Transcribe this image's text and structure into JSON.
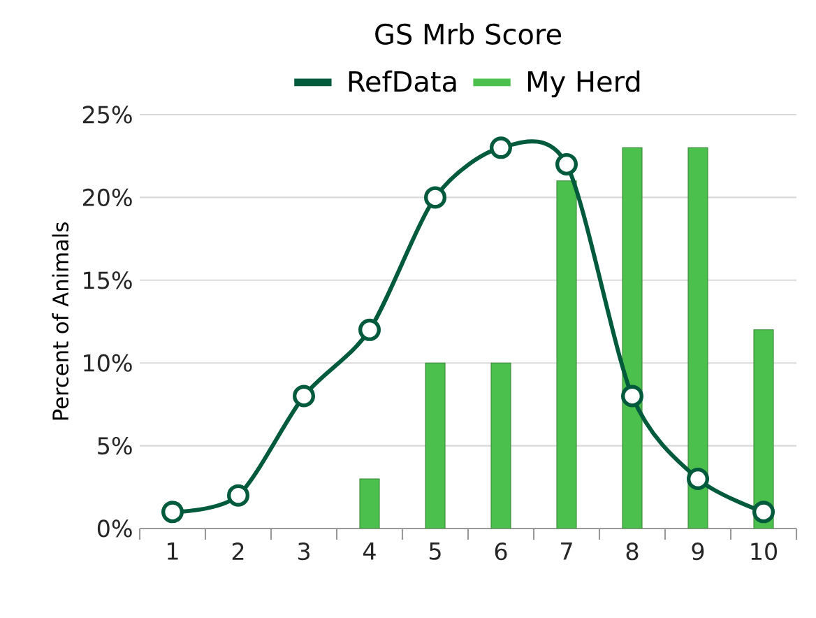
{
  "chart_data": {
    "type": "bar",
    "title": "GS Mrb Score",
    "ylabel": "Percent of Animals",
    "categories": [
      "1",
      "2",
      "3",
      "4",
      "5",
      "6",
      "7",
      "8",
      "9",
      "10"
    ],
    "series": [
      {
        "name": "RefData",
        "type": "line",
        "color": "#005a3c",
        "values": [
          1,
          2,
          8,
          12,
          20,
          23,
          22,
          8,
          3,
          1
        ]
      },
      {
        "name": "My Herd",
        "color": "#4cc04c",
        "values": [
          null,
          null,
          null,
          3,
          10,
          10,
          21,
          23,
          23,
          12
        ]
      }
    ],
    "ylim": [
      0,
      25
    ],
    "yticks": [
      {
        "value": 0,
        "label": "0%"
      },
      {
        "value": 5,
        "label": "5%"
      },
      {
        "value": 10,
        "label": "10%"
      },
      {
        "value": 15,
        "label": "15%"
      },
      {
        "value": 20,
        "label": "20%"
      },
      {
        "value": 25,
        "label": "25%"
      }
    ],
    "grid": "y",
    "legend": "top",
    "marker": "circle"
  }
}
